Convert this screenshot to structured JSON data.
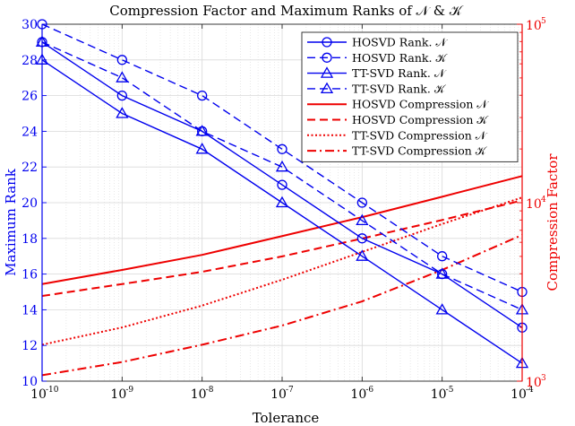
{
  "chart_data": {
    "type": "line",
    "title": "Compression Factor and Maximum Ranks of 𝒩 & 𝒦",
    "xlabel": "Tolerance",
    "ylabel_left": "Maximum Rank",
    "ylabel_right": "Compression Factor",
    "x_scale": "log",
    "x": [
      1e-10,
      1e-09,
      1e-08,
      1e-07,
      1e-06,
      1e-05,
      0.0001
    ],
    "x_tick_labels": [
      "10",
      "10",
      "10",
      "10",
      "10",
      "10",
      "10"
    ],
    "x_tick_exponents": [
      "-10",
      "-9",
      "-8",
      "-7",
      "-6",
      "-5",
      "-4"
    ],
    "xlim": [
      1e-10,
      0.0001
    ],
    "ylim_left": [
      10,
      30
    ],
    "y_ticks_left": [
      "10",
      "12",
      "14",
      "16",
      "18",
      "20",
      "22",
      "24",
      "26",
      "28",
      "30"
    ],
    "y_scale_right": "log",
    "ylim_right": [
      1000,
      100000
    ],
    "y_ticks_right": [
      {
        "base": "10",
        "exp": "3",
        "value": 1000
      },
      {
        "base": "10",
        "exp": "4",
        "value": 10000
      },
      {
        "base": "10",
        "exp": "5",
        "value": 100000
      }
    ],
    "grid": true,
    "legend_position": "top-right",
    "colors": {
      "left_axis": "#0000ee",
      "right_axis": "#ee0000",
      "grid": "#d9d9d9"
    },
    "series": [
      {
        "name": "HOSVD Rank. 𝒩",
        "axis": "left",
        "color": "#0000ee",
        "dash": "solid",
        "marker": "circle",
        "values": [
          29,
          26,
          24,
          21,
          18,
          16,
          13
        ]
      },
      {
        "name": "HOSVD Rank. 𝒦",
        "axis": "left",
        "color": "#0000ee",
        "dash": "dashed",
        "marker": "circle",
        "values": [
          30,
          28,
          26,
          23,
          20,
          17,
          15
        ]
      },
      {
        "name": "TT-SVD Rank. 𝒩",
        "axis": "left",
        "color": "#0000ee",
        "dash": "solid",
        "marker": "triangle",
        "values": [
          28,
          25,
          23,
          20,
          17,
          14,
          11
        ]
      },
      {
        "name": "TT-SVD Rank. 𝒦",
        "axis": "left",
        "color": "#0000ee",
        "dash": "dashed",
        "marker": "triangle",
        "values": [
          29,
          27,
          24,
          22,
          19,
          16,
          14
        ]
      },
      {
        "name": "HOSVD Compression 𝒩",
        "axis": "right",
        "color": "#ee0000",
        "dash": "solid",
        "marker": "none",
        "values": [
          3500,
          4200,
          5100,
          6500,
          8300,
          10800,
          14100
        ]
      },
      {
        "name": "HOSVD Compression 𝒦",
        "axis": "right",
        "color": "#ee0000",
        "dash": "dashed",
        "marker": "none",
        "values": [
          3000,
          3500,
          4100,
          5000,
          6300,
          8000,
          10300
        ]
      },
      {
        "name": "TT-SVD Compression 𝒩",
        "axis": "right",
        "color": "#ee0000",
        "dash": "dotted",
        "marker": "none",
        "values": [
          1600,
          2000,
          2650,
          3700,
          5300,
          7600,
          10700
        ]
      },
      {
        "name": "TT-SVD Compression 𝒦",
        "axis": "right",
        "color": "#ee0000",
        "dash": "dashdot",
        "marker": "none",
        "values": [
          1080,
          1280,
          1600,
          2050,
          2800,
          4200,
          6600
        ]
      }
    ]
  }
}
